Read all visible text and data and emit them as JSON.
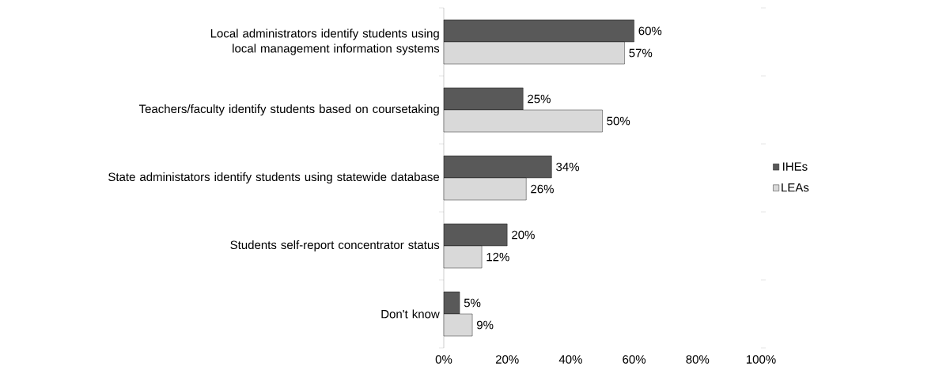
{
  "chart_data": {
    "type": "bar",
    "orientation": "horizontal",
    "categories": [
      "Local administrators identify students using local management information systems",
      "Teachers/faculty identify students based on coursetaking",
      "State administators identify students using statewide database",
      "Students self-report concentrator status",
      "Don't know"
    ],
    "series": [
      {
        "name": "IHEs",
        "color": "#595959",
        "values": [
          60,
          25,
          34,
          20,
          5
        ],
        "value_labels": [
          "60%",
          "25%",
          "34%",
          "20%",
          "5%"
        ]
      },
      {
        "name": "LEAs",
        "color": "#d9d9d9",
        "values": [
          57,
          50,
          26,
          12,
          9
        ],
        "value_labels": [
          "57%",
          "50%",
          "26%",
          "12%",
          "9%"
        ]
      }
    ],
    "xlim": [
      0,
      100
    ],
    "xticks": [
      {
        "value": 0,
        "label": "0%"
      },
      {
        "value": 20,
        "label": "20%"
      },
      {
        "value": 40,
        "label": "40%"
      },
      {
        "value": 60,
        "label": "60%"
      },
      {
        "value": 80,
        "label": "80%"
      },
      {
        "value": 100,
        "label": "100%"
      }
    ],
    "legend": "right",
    "grid": false
  }
}
